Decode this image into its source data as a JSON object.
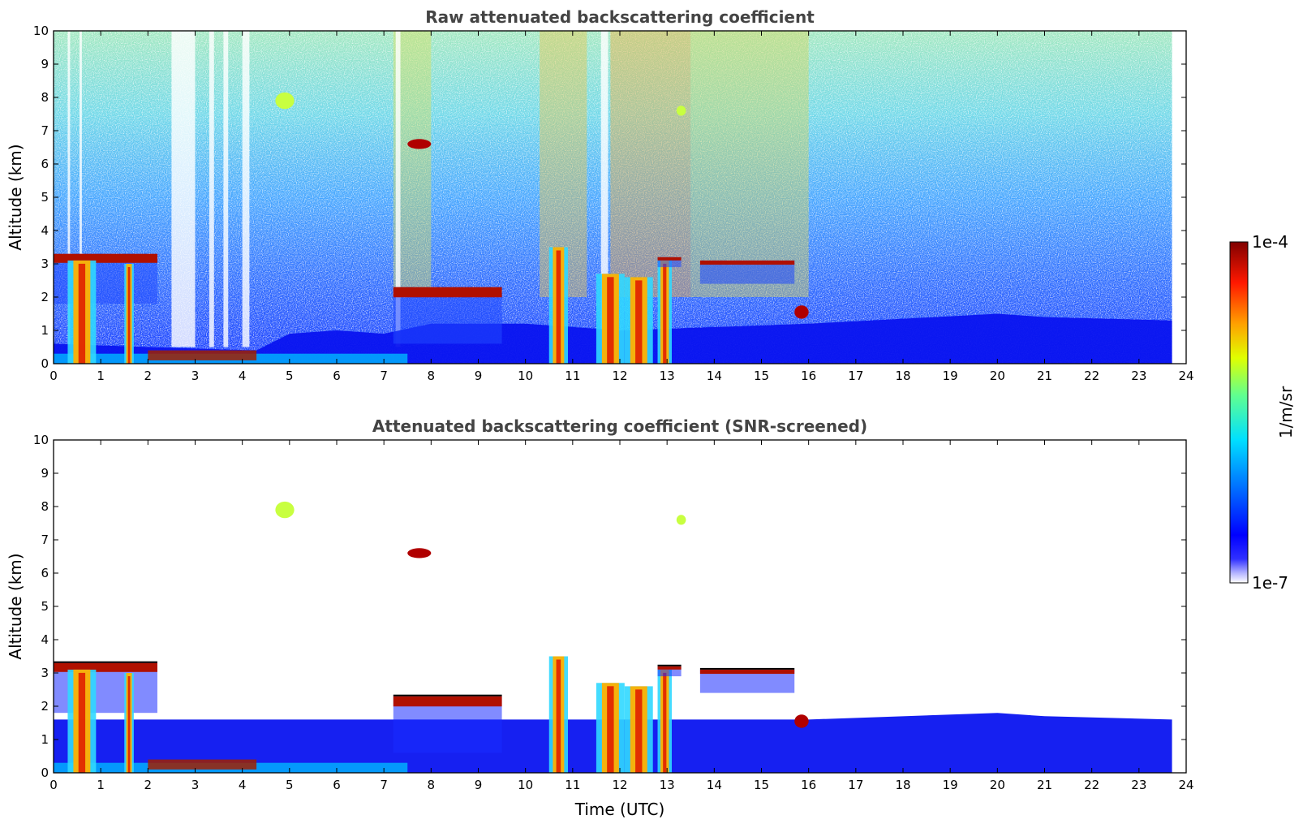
{
  "chart_data": [
    {
      "type": "heatmap",
      "title": "Raw attenuated backscattering coefficient",
      "xlabel": "",
      "ylabel": "Altitude (km)",
      "xlim": [
        0,
        24
      ],
      "ylim": [
        0,
        10
      ],
      "x_ticks": [
        0,
        1,
        2,
        3,
        4,
        5,
        6,
        7,
        8,
        9,
        10,
        11,
        12,
        13,
        14,
        15,
        16,
        17,
        18,
        19,
        20,
        21,
        22,
        23,
        24
      ],
      "y_ticks": [
        0,
        1,
        2,
        3,
        4,
        5,
        6,
        7,
        8,
        9,
        10
      ],
      "data_end_time": 23.7,
      "screened": false,
      "features": [
        {
          "kind": "boundary_layer",
          "time": [
            0,
            23.7
          ],
          "top_km": [
            0.3,
            1.6
          ]
        },
        {
          "kind": "cloud_layer",
          "time": [
            0.0,
            2.2
          ],
          "altitude_km": [
            1.8,
            3.3
          ]
        },
        {
          "kind": "precipitation_column",
          "time": [
            0.3,
            0.9
          ],
          "altitude_km": [
            0,
            3.1
          ]
        },
        {
          "kind": "precipitation_column",
          "time": [
            1.5,
            1.7
          ],
          "altitude_km": [
            0,
            3.0
          ]
        },
        {
          "kind": "aerosol_layer",
          "time": [
            2.0,
            4.3
          ],
          "altitude_km": [
            0.1,
            0.4
          ]
        },
        {
          "kind": "cirrus_patch",
          "time": [
            4.7,
            5.1
          ],
          "altitude_km": [
            7.7,
            8.1
          ]
        },
        {
          "kind": "cloud_patch",
          "time": [
            7.5,
            8.0
          ],
          "altitude_km": [
            6.5,
            6.7
          ]
        },
        {
          "kind": "cloud_layer",
          "time": [
            7.2,
            9.5
          ],
          "altitude_km": [
            0.6,
            2.3
          ]
        },
        {
          "kind": "precipitation_column",
          "time": [
            10.5,
            10.9
          ],
          "altitude_km": [
            0,
            3.5
          ]
        },
        {
          "kind": "precipitation_column",
          "time": [
            11.5,
            12.1
          ],
          "altitude_km": [
            0,
            2.7
          ]
        },
        {
          "kind": "precipitation_column",
          "time": [
            12.1,
            12.7
          ],
          "altitude_km": [
            0,
            2.6
          ]
        },
        {
          "kind": "precipitation_column",
          "time": [
            12.8,
            13.1
          ],
          "altitude_km": [
            0,
            3.1
          ]
        },
        {
          "kind": "cloud_layer",
          "time": [
            12.8,
            13.3
          ],
          "altitude_km": [
            2.9,
            3.2
          ]
        },
        {
          "kind": "cirrus_patch",
          "time": [
            13.2,
            13.4
          ],
          "altitude_km": [
            7.5,
            7.7
          ]
        },
        {
          "kind": "cloud_layer",
          "time": [
            13.7,
            15.7
          ],
          "altitude_km": [
            2.4,
            3.1
          ]
        },
        {
          "kind": "cloud_patch",
          "time": [
            15.7,
            16.0
          ],
          "altitude_km": [
            1.4,
            1.7
          ]
        }
      ]
    },
    {
      "type": "heatmap",
      "title": "Attenuated backscattering coefficient (SNR-screened)",
      "xlabel": "Time (UTC)",
      "ylabel": "Altitude (km)",
      "xlim": [
        0,
        24
      ],
      "ylim": [
        0,
        10
      ],
      "x_ticks": [
        0,
        1,
        2,
        3,
        4,
        5,
        6,
        7,
        8,
        9,
        10,
        11,
        12,
        13,
        14,
        15,
        16,
        17,
        18,
        19,
        20,
        21,
        22,
        23,
        24
      ],
      "y_ticks": [
        0,
        1,
        2,
        3,
        4,
        5,
        6,
        7,
        8,
        9,
        10
      ],
      "data_end_time": 23.7,
      "screened": true
    }
  ],
  "colorbar": {
    "label": "1/m/sr",
    "min_label": "1e-7",
    "max_label": "1e-4",
    "min": 1e-07,
    "max": 0.0001,
    "scale": "log",
    "colormap": "jet"
  },
  "colors": {
    "background": "#ffffff",
    "low": "#0000cc",
    "mid": "#00ccff",
    "high": "#880000",
    "axes": "#000000",
    "title": "#444444"
  }
}
